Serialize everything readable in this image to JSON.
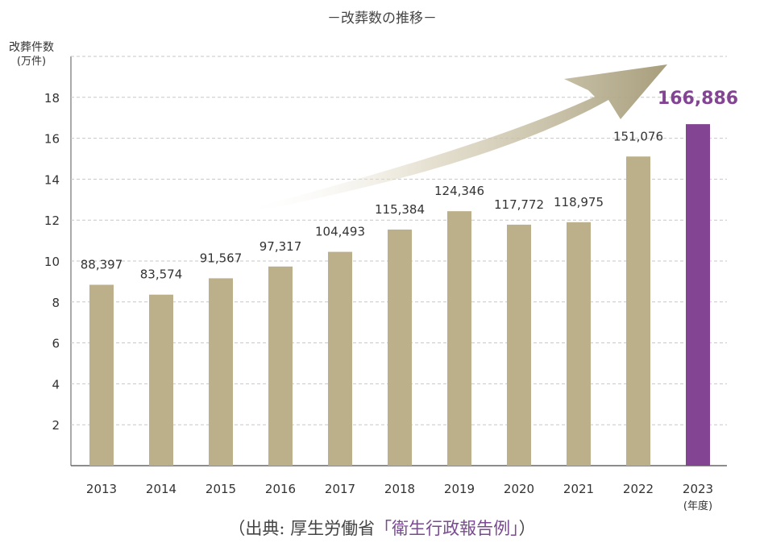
{
  "title": "－改葬数の推移－",
  "y_axis_label": "改葬件数",
  "y_axis_unit": "(万件)",
  "x_axis_unit": "(年度)",
  "source": {
    "prefix": "（出典: 厚生労働省",
    "publication": "「衛生行政報告例」",
    "suffix": "）"
  },
  "colors": {
    "bar": "#bcb08a",
    "highlight": "#834593",
    "grid": "#c7c7c7",
    "arrow": "#a89e7c"
  },
  "chart_data": {
    "type": "bar",
    "categories": [
      "2013",
      "2014",
      "2015",
      "2016",
      "2017",
      "2018",
      "2019",
      "2020",
      "2021",
      "2022",
      "2023"
    ],
    "values": [
      88397,
      83574,
      91567,
      97317,
      104493,
      115384,
      124346,
      117772,
      118975,
      151076,
      166886
    ],
    "value_labels": [
      "88,397",
      "83,574",
      "91,567",
      "97,317",
      "104,493",
      "115,384",
      "124,346",
      "117,772",
      "118,975",
      "151,076",
      "166,886"
    ],
    "highlight_index": 10,
    "ylabel": "改葬件数 (万件)",
    "xlabel": "(年度)",
    "yticks": [
      "2",
      "4",
      "6",
      "8",
      "10",
      "12",
      "14",
      "16",
      "18"
    ],
    "ylim": [
      0,
      20
    ],
    "grid": true,
    "annotation": "upward trend arrow"
  }
}
